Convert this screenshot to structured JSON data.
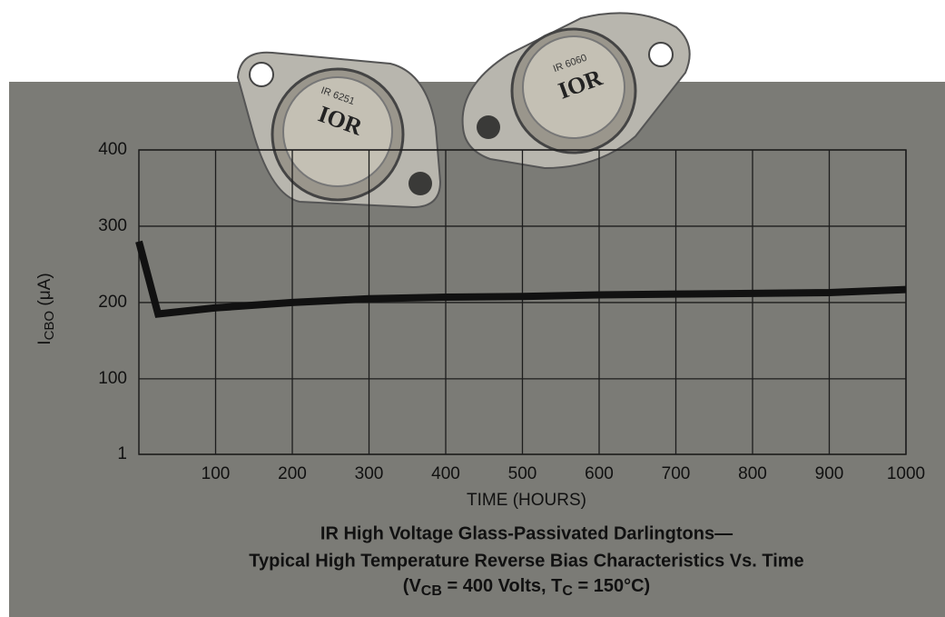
{
  "chart_data": {
    "type": "line",
    "title": [
      "IR High Voltage Glass-Passivated Darlingtons—",
      "Typical High Temperature Reverse Bias Characteristics Vs. Time"
    ],
    "conditions": [
      "(V",
      "CB",
      " = 400 Volts, T",
      "C",
      " = 150°C)"
    ],
    "x_label": "TIME (HOURS)",
    "y_label": [
      "I",
      "CBO",
      " (μA)"
    ],
    "photo_labels": [
      "IR 6251",
      "IOR",
      "IR 6060",
      "IOR"
    ],
    "x": [
      0,
      25,
      100,
      200,
      300,
      400,
      500,
      600,
      700,
      800,
      900,
      1000
    ],
    "series": [
      {
        "name": "ICBO",
        "color": "#111111",
        "values": [
          280,
          185,
          193,
          200,
          205,
          207,
          208,
          210,
          211,
          212,
          213,
          217
        ]
      }
    ],
    "xlim": [
      0,
      1000
    ],
    "xticks": [
      100,
      200,
      300,
      400,
      500,
      600,
      700,
      800,
      900,
      1000
    ],
    "ylim": [
      1,
      400
    ],
    "yticks": [
      1,
      100,
      200,
      300,
      400
    ],
    "grid": true
  }
}
